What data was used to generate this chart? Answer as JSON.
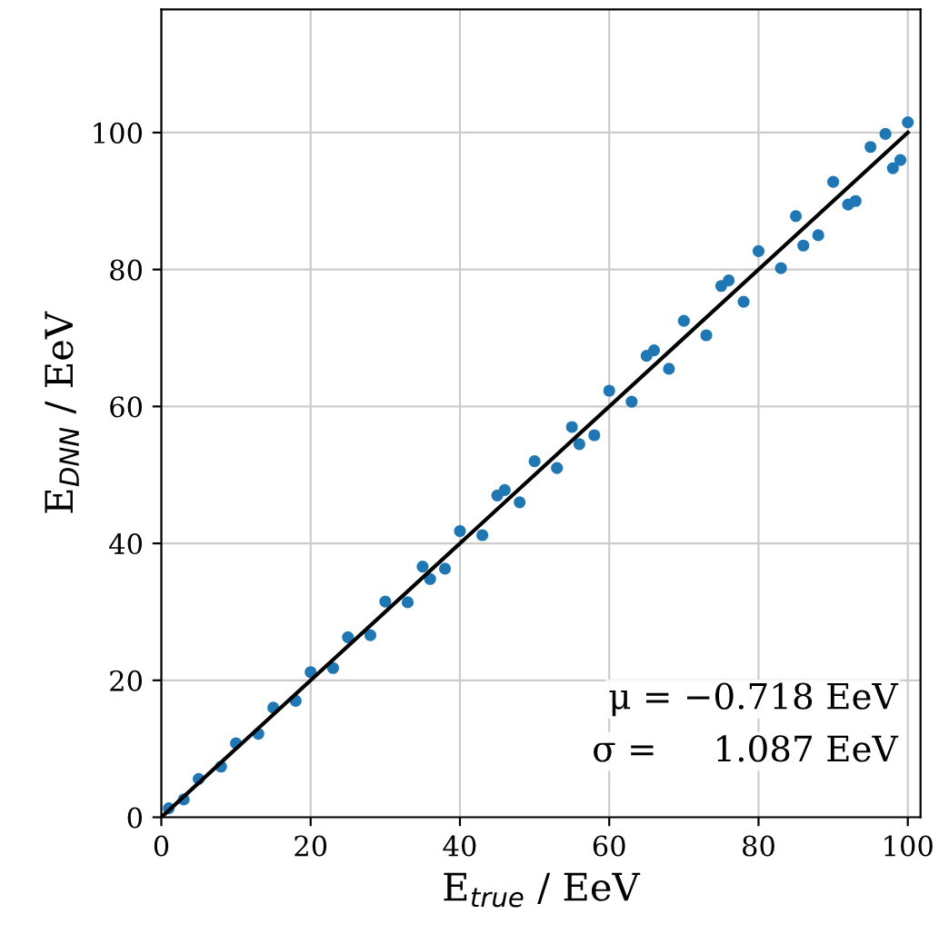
{
  "chart_data": {
    "type": "scatter",
    "xlabel": "E$_{true}$ / EeV",
    "ylabel": "E$_{DNN}$ / EeV",
    "annotations": [
      "μ = −0.718 EeV",
      "σ =     1.087 EeV"
    ],
    "xlim": [
      0,
      101.7
    ],
    "ylim": [
      0,
      118
    ],
    "xticks": [
      0,
      20,
      40,
      60,
      80,
      100
    ],
    "yticks": [
      0,
      20,
      40,
      60,
      80,
      100
    ],
    "grid": true,
    "series": [
      {
        "color": "#1f77b4",
        "marker": "circle",
        "x": [
          1,
          3,
          5,
          8,
          10,
          13,
          15,
          18,
          20,
          23,
          25,
          28,
          30,
          33,
          35,
          38,
          40,
          43,
          45,
          48,
          50,
          53,
          55,
          58,
          60,
          63,
          65,
          68,
          70,
          73,
          75,
          78,
          80,
          83,
          85,
          88,
          90,
          93,
          95,
          98,
          100,
          99,
          97,
          92,
          86,
          76,
          66,
          56,
          46,
          36
        ],
        "values": [
          1.3,
          2.6,
          5.6,
          7.4,
          10.8,
          12.2,
          16,
          17,
          21.2,
          21.8,
          26.3,
          26.6,
          31.5,
          31.4,
          36.6,
          36.3,
          41.8,
          41.2,
          47,
          46,
          52,
          51,
          57,
          55.8,
          62.3,
          60.7,
          67.4,
          65.5,
          72.5,
          70.4,
          77.6,
          75.3,
          82.7,
          80.2,
          87.8,
          85,
          92.8,
          90,
          97.9,
          94.8,
          101.5,
          96,
          99.8,
          89.5,
          83.5,
          78.4,
          68.2,
          54.5,
          47.8,
          34.8
        ]
      },
      {
        "type": "line",
        "color": "#000000",
        "marker": "none",
        "line_style": "solid",
        "x": [
          0,
          100
        ],
        "values": [
          0,
          100
        ]
      }
    ]
  }
}
